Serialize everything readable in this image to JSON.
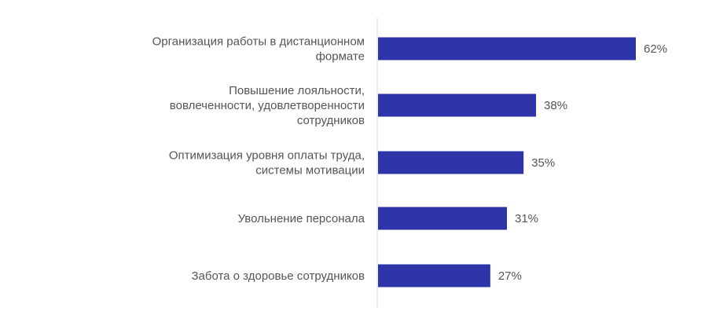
{
  "chart_data": {
    "type": "bar",
    "orientation": "horizontal",
    "categories": [
      [
        "Организация работы в дистанционном",
        "формате"
      ],
      [
        "Повышение лояльности,",
        "вовлеченности, удовлетворенности",
        "сотрудников"
      ],
      [
        "Оптимизация уровня оплаты труда,",
        "системы мотивации"
      ],
      [
        "Увольнение персонала"
      ],
      [
        "Забота о здоровье сотрудников"
      ]
    ],
    "values": [
      62,
      38,
      35,
      31,
      27
    ],
    "value_labels": [
      "62%",
      "38%",
      "35%",
      "31%",
      "27%"
    ],
    "unit": "%",
    "bar_color": "#2E35A8",
    "axis_color": "#dddddd",
    "label_color": "#555555",
    "xlim": [
      0,
      62
    ],
    "grid": false,
    "legend": "none"
  }
}
